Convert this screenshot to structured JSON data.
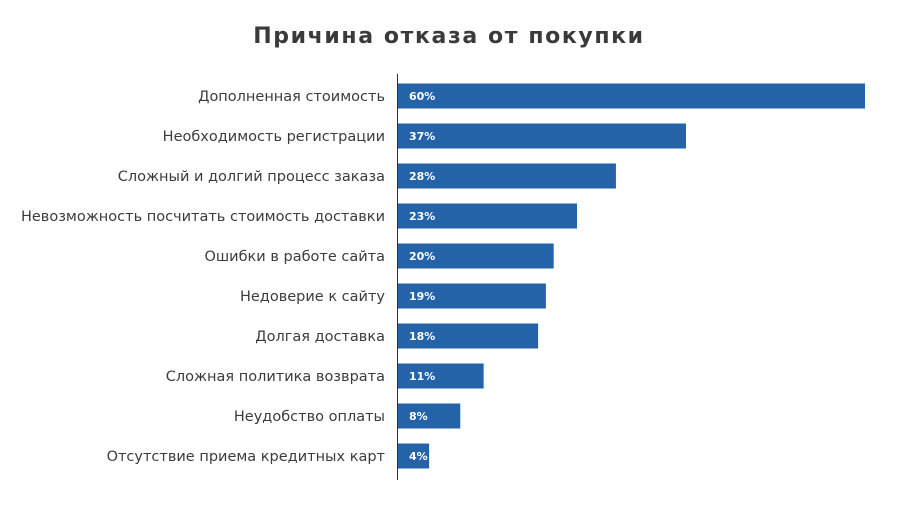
{
  "chart_data": {
    "type": "bar",
    "orientation": "horizontal",
    "title": "Причина отказа от покупки",
    "categories": [
      "Дополненная стоимость",
      "Необходимость регистрации",
      "Сложный и долгий процесс заказа",
      "Невозможность посчитать стоимость доставки",
      "Ошибки в работе сайта",
      "Недоверие к сайту",
      "Долгая доставка",
      "Сложная политика возврата",
      "Неудобство оплаты",
      "Отсутствие приема кредитных карт"
    ],
    "values": [
      60,
      37,
      28,
      23,
      20,
      19,
      18,
      11,
      8,
      4
    ],
    "value_labels": [
      "60%",
      "37%",
      "28%",
      "23%",
      "20%",
      "19%",
      "18%",
      "11%",
      "8%",
      "4%"
    ],
    "unit": "%",
    "xlim": [
      0,
      60
    ],
    "grid": false,
    "bar_color": "#2463a8",
    "axis_color": "#333333"
  }
}
